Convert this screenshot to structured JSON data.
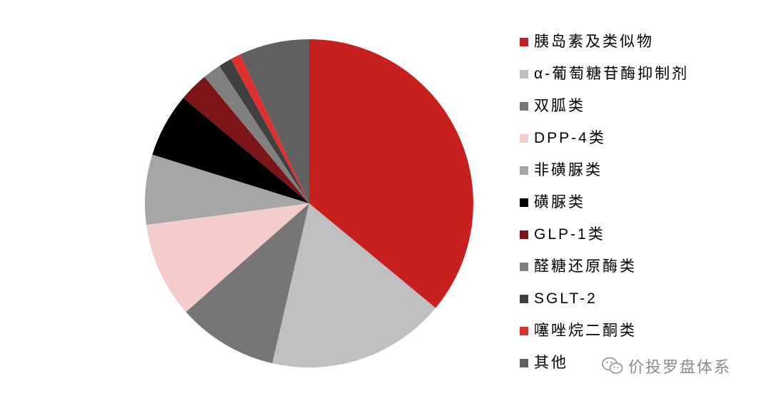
{
  "chart_data": {
    "type": "pie",
    "categories": [
      "胰岛素及类似物",
      "α-葡萄糖苷酶抑制剂",
      "双胍类",
      "DPP-4类",
      "非磺脲类",
      "磺脲类",
      "GLP-1类",
      "醛糖还原酶类",
      "SGLT-2",
      "噻唑烷二酮类",
      "其他"
    ],
    "values": [
      36.0,
      17.6,
      9.9,
      9.4,
      6.9,
      6.3,
      2.9,
      1.8,
      1.3,
      1.0,
      6.9
    ],
    "colors": [
      "#C8201F",
      "#BFBFBF",
      "#767676",
      "#F4CCCC",
      "#A6A6A6",
      "#000000",
      "#7B1517",
      "#808080",
      "#404040",
      "#E0302E",
      "#606060"
    ],
    "legend_position": "right"
  },
  "watermark": {
    "text": "价投罗盘体系",
    "icon": "wechat-icon"
  }
}
